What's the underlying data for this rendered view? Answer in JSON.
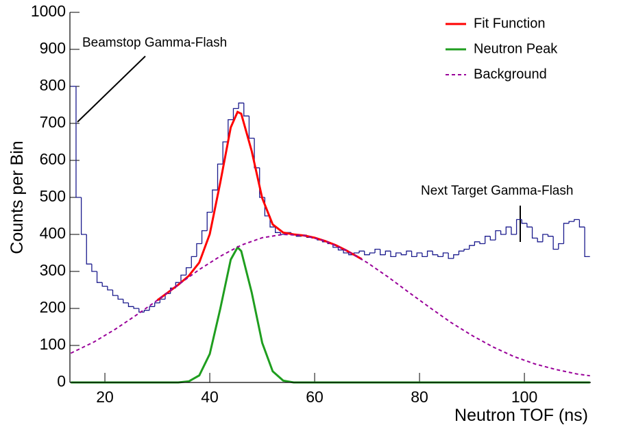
{
  "chart_data": {
    "type": "histogram",
    "xlabel": "Neutron TOF (ns)",
    "ylabel": "Counts per Bin",
    "xlim": [
      13.33,
      112.67
    ],
    "ylim": [
      0,
      1000
    ],
    "xticks": [
      20,
      40,
      60,
      80,
      100
    ],
    "yticks": [
      0,
      100,
      200,
      300,
      400,
      500,
      600,
      700,
      800,
      900,
      1000
    ],
    "legend": "top-right",
    "annotations": [
      "Beamstop Gamma-Flash",
      "Next Target Gamma-Flash"
    ],
    "histogram": {
      "color": "#1a1a8c",
      "bins": [
        13.5,
        14.5,
        15.5,
        16.5,
        17.5,
        18.5,
        19.5,
        20.5,
        21.5,
        22.5,
        23.5,
        24.5,
        25.5,
        26.5,
        27.5,
        28.5,
        29.5,
        30.5,
        31.5,
        32.5,
        33.5,
        34.5,
        35.5,
        36.5,
        37.5,
        38.5,
        39.5,
        40.5,
        41.5,
        42.5,
        43.5,
        44.5,
        45.5,
        46.5,
        47.5,
        48.5,
        49.5,
        50.5,
        51.5,
        52.5,
        53.5,
        54.5,
        55.5,
        56.5,
        57.5,
        58.5,
        59.5,
        60.5,
        61.5,
        62.5,
        63.5,
        64.5,
        65.5,
        66.5,
        67.5,
        68.5,
        69.5,
        70.5,
        71.5,
        72.5,
        73.5,
        74.5,
        75.5,
        76.5,
        77.5,
        78.5,
        79.5,
        80.5,
        81.5,
        82.5,
        83.5,
        84.5,
        85.5,
        86.5,
        87.5,
        88.5,
        89.5,
        90.5,
        91.5,
        92.5,
        93.5,
        94.5,
        95.5,
        96.5,
        97.5,
        98.5,
        99.5,
        100.5,
        101.5,
        102.5,
        103.5,
        104.5,
        105.5,
        106.5,
        107.5,
        108.5,
        109.5,
        110.5,
        111.5,
        112.5
      ],
      "counts": [
        800,
        500,
        400,
        320,
        300,
        270,
        260,
        250,
        235,
        225,
        215,
        205,
        200,
        190,
        195,
        205,
        215,
        225,
        240,
        255,
        270,
        290,
        310,
        340,
        375,
        410,
        460,
        520,
        590,
        650,
        710,
        740,
        755,
        720,
        660,
        580,
        500,
        450,
        420,
        405,
        400,
        405,
        400,
        395,
        398,
        392,
        390,
        385,
        380,
        375,
        365,
        358,
        350,
        345,
        350,
        355,
        345,
        350,
        360,
        345,
        355,
        340,
        350,
        345,
        355,
        340,
        350,
        340,
        355,
        345,
        340,
        350,
        335,
        345,
        355,
        360,
        370,
        380,
        375,
        395,
        385,
        410,
        400,
        420,
        400,
        440,
        430,
        420,
        390,
        380,
        400,
        395,
        360,
        375,
        430,
        435,
        440,
        420,
        340
      ]
    },
    "series": [
      {
        "name": "Fit Function",
        "color": "#ff0000",
        "line_style": "solid",
        "x": [
          30,
          32,
          34,
          36,
          38,
          40,
          42,
          44,
          45.3,
          46,
          48,
          50,
          52,
          54,
          56,
          58,
          60,
          62,
          64,
          66,
          68,
          69
        ],
        "values": [
          222,
          243,
          264,
          288,
          324,
          401,
          540,
          689,
          731,
          726,
          625,
          498,
          427,
          405,
          400,
          397,
          391,
          382,
          371,
          357,
          341,
          333
        ]
      },
      {
        "name": "Neutron Peak",
        "color": "#1f9e1f",
        "line_style": "solid",
        "x": [
          13.5,
          34,
          36,
          38,
          40,
          42,
          44,
          45.3,
          46,
          48,
          50,
          52,
          54,
          56,
          112.5
        ],
        "values": [
          0,
          0,
          3,
          19,
          77,
          199,
          332,
          365,
          355,
          243,
          107,
          30,
          5,
          0,
          0
        ]
      },
      {
        "name": "Background",
        "color": "#990099",
        "line_style": "dashed",
        "x": [
          13.5,
          18,
          22,
          26,
          30,
          34,
          38,
          42,
          46,
          50,
          54,
          58,
          62,
          66,
          70,
          74,
          78,
          82,
          86,
          90,
          94,
          98,
          102,
          106,
          110,
          112.5
        ],
        "values": [
          79,
          110,
          144,
          182,
          222,
          264,
          305,
          341,
          371,
          391,
          400,
          397,
          382,
          357,
          324,
          285,
          243,
          202,
          162,
          127,
          96,
          70,
          50,
          35,
          23,
          18
        ]
      }
    ]
  }
}
